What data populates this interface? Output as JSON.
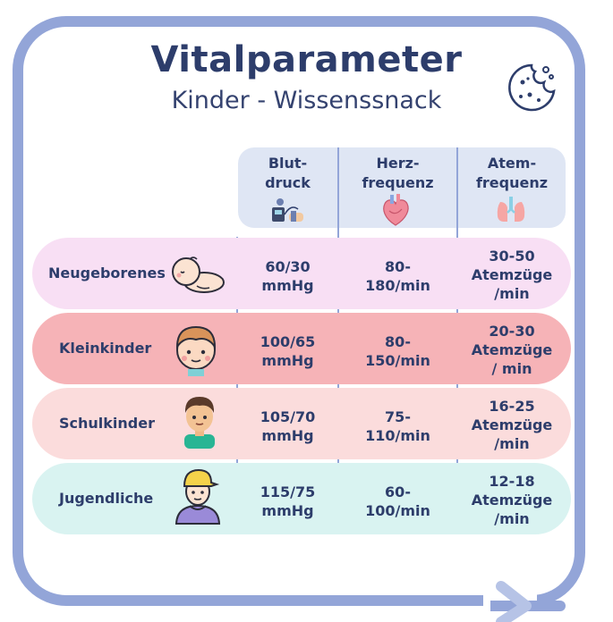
{
  "header": {
    "title": "Vitalparameter",
    "subtitle": "Kinder - Wissenssnack"
  },
  "columns": [
    {
      "line1": "Blut-",
      "line2": "druck",
      "icon": "blood-pressure-monitor-icon"
    },
    {
      "line1": "Herz-",
      "line2": "frequenz",
      "icon": "heart-icon"
    },
    {
      "line1": "Atem-",
      "line2": "frequenz",
      "icon": "lungs-icon"
    }
  ],
  "rows": [
    {
      "label": "Neugeborenes",
      "icon": "baby-icon",
      "bp": [
        "60/30",
        "mmHg"
      ],
      "hr": [
        "80-",
        "180/min"
      ],
      "rr": [
        "30-50",
        "Atemzüge",
        "/min"
      ]
    },
    {
      "label": "Kleinkinder",
      "icon": "toddler-icon",
      "bp": [
        "100/65",
        "mmHg"
      ],
      "hr": [
        "80-",
        "150/min"
      ],
      "rr": [
        "20-30",
        "Atemzüge",
        "/ min"
      ]
    },
    {
      "label": "Schulkinder",
      "icon": "schoolchild-icon",
      "bp": [
        "105/70",
        "mmHg"
      ],
      "hr": [
        "75-",
        "110/min"
      ],
      "rr": [
        "16-25",
        "Atemzüge",
        "/min"
      ]
    },
    {
      "label": "Jugendliche",
      "icon": "teenager-icon",
      "bp": [
        "115/75",
        "mmHg"
      ],
      "hr": [
        "60-",
        "100/min"
      ],
      "rr": [
        "12-18",
        "Atemzüge",
        "/min"
      ]
    }
  ],
  "colors": {
    "frame": "#93a5d8",
    "text": "#2d3d6b",
    "header_box": "#dfe6f4",
    "row_bg": [
      "#f8dff4",
      "#f6b3b7",
      "#fbdcdc",
      "#d9f3f1"
    ]
  }
}
